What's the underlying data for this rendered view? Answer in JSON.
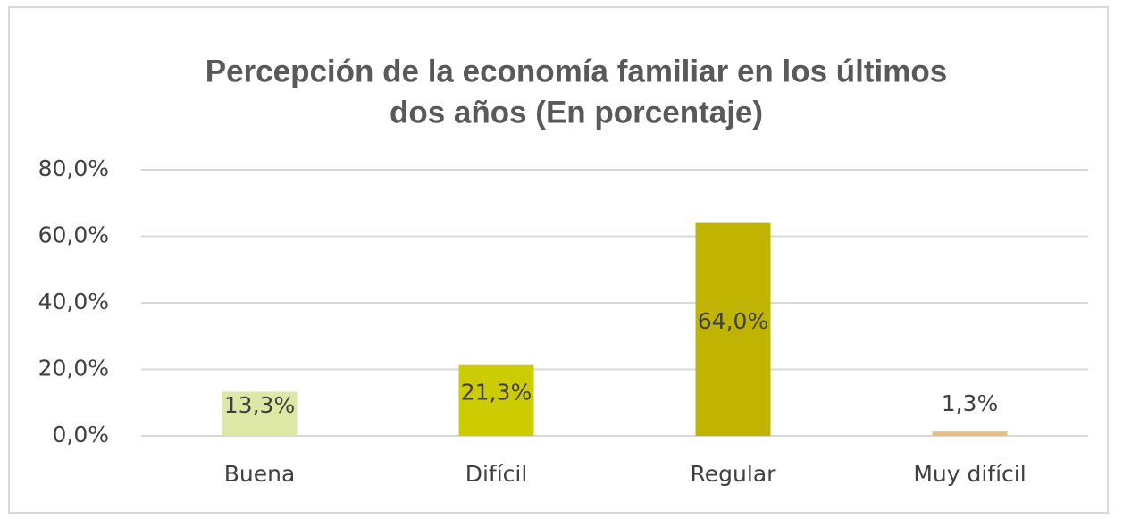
{
  "chart_data": {
    "type": "bar",
    "title": [
      "Percepción de la economía familiar  en los últimos",
      "dos años  (En porcentaje)"
    ],
    "categories": [
      "Buena",
      "Difícil",
      "Regular",
      "Muy difícil"
    ],
    "values": [
      13.3,
      21.3,
      64.0,
      1.3
    ],
    "value_labels": [
      "13,3%",
      "21,3%",
      "64,0%",
      "1,3%"
    ],
    "colors": [
      "#dee8a6",
      "#cccc00",
      "#c0b400",
      "#e6be80"
    ],
    "ylim": [
      0,
      80
    ],
    "yticks": [
      {
        "value": 0,
        "label": "0,0%"
      },
      {
        "value": 20,
        "label": "20,0%"
      },
      {
        "value": 40,
        "label": "40,0%"
      },
      {
        "value": 60,
        "label": "60,0%"
      },
      {
        "value": 80,
        "label": "80,0%"
      }
    ],
    "grid": true
  }
}
